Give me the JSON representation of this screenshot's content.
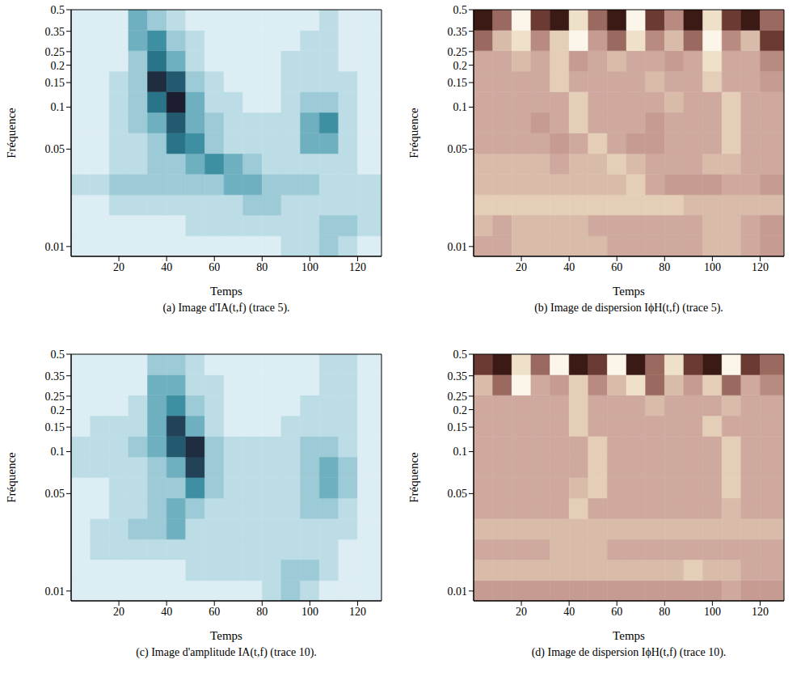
{
  "chart_data": [
    {
      "type": "heatmap",
      "caption": "(a) Image d'IA(t,f) (trace 5).",
      "xlabel": "Temps",
      "ylabel": "Fréquence",
      "log": "y",
      "color": "#1c1d2e",
      "xlim": [
        0,
        130
      ],
      "xticks": [
        20,
        40,
        60,
        80,
        100,
        120
      ],
      "ylim": [
        0.0085,
        0.5
      ],
      "yticks": [
        0.01,
        0.05,
        0.1,
        0.15,
        0.2,
        0.25,
        0.35,
        0.5
      ],
      "time_bins": [
        0,
        8,
        16,
        24,
        32,
        40,
        48,
        56,
        64,
        72,
        80,
        88,
        96,
        104,
        112,
        120,
        130
      ],
      "freq_bins": [
        0.0085,
        0.0119,
        0.0168,
        0.0235,
        0.0331,
        0.0464,
        0.0652,
        0.0916,
        0.129,
        0.181,
        0.254,
        0.356,
        0.5
      ],
      "zlim": [
        0,
        9
      ],
      "cells": [
        [
          0,
          0,
          0,
          0,
          0,
          0,
          0,
          0,
          0,
          0,
          0,
          1,
          1,
          2,
          1,
          0
        ],
        [
          0,
          0,
          0,
          0,
          0,
          0,
          1,
          1,
          1,
          1,
          1,
          1,
          1,
          2,
          2,
          1
        ],
        [
          0,
          0,
          1,
          1,
          1,
          1,
          1,
          1,
          1,
          2,
          2,
          1,
          1,
          1,
          1,
          1
        ],
        [
          1,
          1,
          2,
          2,
          2,
          2,
          2,
          2,
          3,
          3,
          2,
          2,
          2,
          1,
          1,
          1
        ],
        [
          0,
          0,
          1,
          1,
          2,
          2,
          3,
          4,
          3,
          2,
          1,
          1,
          1,
          1,
          1,
          0
        ],
        [
          0,
          0,
          1,
          1,
          2,
          5,
          4,
          2,
          1,
          1,
          1,
          1,
          3,
          3,
          1,
          0
        ],
        [
          0,
          0,
          1,
          2,
          3,
          6,
          3,
          2,
          1,
          1,
          1,
          1,
          3,
          4,
          1,
          0
        ],
        [
          0,
          0,
          1,
          2,
          5,
          9,
          3,
          1,
          1,
          0,
          0,
          1,
          2,
          2,
          1,
          0
        ],
        [
          0,
          0,
          1,
          2,
          8,
          6,
          2,
          1,
          0,
          0,
          0,
          1,
          1,
          1,
          1,
          0
        ],
        [
          0,
          0,
          0,
          2,
          5,
          3,
          1,
          0,
          0,
          0,
          0,
          1,
          1,
          1,
          0,
          0
        ],
        [
          0,
          0,
          0,
          3,
          4,
          2,
          1,
          0,
          0,
          0,
          0,
          0,
          1,
          1,
          0,
          0
        ],
        [
          0,
          0,
          0,
          3,
          2,
          1,
          0,
          0,
          0,
          0,
          0,
          0,
          0,
          1,
          0,
          0
        ]
      ]
    },
    {
      "type": "heatmap",
      "caption": "(b) Image de dispersion IϕH(t,f) (trace 5).",
      "xlabel": "Temps",
      "ylabel": "Fréquence",
      "log": "y",
      "color": "#3b1a16",
      "xlim": [
        0,
        130
      ],
      "xticks": [
        20,
        40,
        60,
        80,
        100,
        120
      ],
      "ylim": [
        0.0085,
        0.5
      ],
      "yticks": [
        0.01,
        0.05,
        0.1,
        0.15,
        0.2,
        0.25,
        0.35,
        0.5
      ],
      "time_bins": [
        0,
        8,
        16,
        24,
        32,
        40,
        48,
        56,
        64,
        72,
        80,
        88,
        96,
        104,
        112,
        120,
        130
      ],
      "freq_bins": [
        0.0085,
        0.0119,
        0.0168,
        0.0235,
        0.0331,
        0.0464,
        0.0652,
        0.0916,
        0.129,
        0.181,
        0.254,
        0.356,
        0.5
      ],
      "zlim": [
        0,
        9
      ],
      "cells": [
        [
          5,
          5,
          6,
          6,
          6,
          6,
          6,
          5,
          5,
          5,
          5,
          5,
          6,
          6,
          5,
          4
        ],
        [
          6,
          5,
          6,
          6,
          6,
          6,
          5,
          5,
          5,
          5,
          5,
          5,
          6,
          6,
          5,
          4
        ],
        [
          7,
          7,
          7,
          7,
          7,
          7,
          7,
          7,
          7,
          7,
          7,
          6,
          6,
          6,
          6,
          6
        ],
        [
          6,
          6,
          6,
          6,
          6,
          6,
          6,
          6,
          7,
          5,
          4,
          4,
          4,
          5,
          5,
          4
        ],
        [
          6,
          6,
          6,
          6,
          5,
          6,
          6,
          7,
          6,
          5,
          5,
          5,
          6,
          6,
          5,
          5
        ],
        [
          5,
          5,
          5,
          5,
          4,
          5,
          7,
          5,
          4,
          4,
          5,
          5,
          5,
          7,
          5,
          5
        ],
        [
          5,
          5,
          5,
          4,
          5,
          7,
          5,
          5,
          5,
          4,
          5,
          5,
          5,
          7,
          5,
          5
        ],
        [
          5,
          5,
          5,
          5,
          5,
          7,
          5,
          5,
          5,
          5,
          6,
          5,
          5,
          7,
          5,
          5
        ],
        [
          5,
          5,
          5,
          5,
          7,
          5,
          5,
          5,
          5,
          6,
          5,
          5,
          7,
          5,
          5,
          4
        ],
        [
          5,
          5,
          6,
          5,
          7,
          4,
          5,
          6,
          5,
          5,
          4,
          5,
          8,
          5,
          5,
          3
        ],
        [
          2,
          6,
          8,
          3,
          7,
          9,
          4,
          2,
          8,
          3,
          6,
          2,
          9,
          3,
          6,
          1
        ],
        [
          0,
          2,
          9,
          1,
          0,
          8,
          2,
          0,
          9,
          1,
          3,
          0,
          8,
          1,
          0,
          2
        ]
      ]
    },
    {
      "type": "heatmap",
      "caption": "(c) Image d'amplitude IA(t,f) (trace 10).",
      "xlabel": "Temps",
      "ylabel": "Fréquence",
      "log": "y",
      "color": "#1c1d2e",
      "xlim": [
        0,
        130
      ],
      "xticks": [
        20,
        40,
        60,
        80,
        100,
        120
      ],
      "ylim": [
        0.0085,
        0.5
      ],
      "yticks": [
        0.01,
        0.05,
        0.1,
        0.15,
        0.2,
        0.25,
        0.35,
        0.5
      ],
      "time_bins": [
        0,
        8,
        16,
        24,
        32,
        40,
        48,
        56,
        64,
        72,
        80,
        88,
        96,
        104,
        112,
        120,
        130
      ],
      "freq_bins": [
        0.0085,
        0.0119,
        0.0168,
        0.0235,
        0.0331,
        0.0464,
        0.0652,
        0.0916,
        0.129,
        0.181,
        0.254,
        0.356,
        0.5
      ],
      "zlim": [
        0,
        9
      ],
      "cells": [
        [
          0,
          0,
          0,
          0,
          0,
          0,
          0,
          0,
          0,
          0,
          1,
          2,
          1,
          0,
          0,
          0
        ],
        [
          0,
          0,
          0,
          0,
          0,
          0,
          1,
          1,
          1,
          1,
          1,
          2,
          2,
          1,
          0,
          0
        ],
        [
          0,
          1,
          1,
          1,
          1,
          1,
          1,
          1,
          1,
          1,
          1,
          1,
          1,
          1,
          0,
          0
        ],
        [
          0,
          1,
          1,
          2,
          2,
          3,
          1,
          1,
          1,
          1,
          1,
          1,
          1,
          1,
          1,
          0
        ],
        [
          0,
          0,
          1,
          1,
          2,
          3,
          2,
          1,
          1,
          1,
          1,
          1,
          2,
          2,
          1,
          0
        ],
        [
          0,
          0,
          1,
          1,
          2,
          2,
          4,
          2,
          1,
          1,
          1,
          1,
          2,
          3,
          2,
          0
        ],
        [
          1,
          1,
          1,
          1,
          2,
          3,
          7,
          2,
          1,
          1,
          1,
          1,
          2,
          3,
          2,
          0
        ],
        [
          1,
          1,
          1,
          2,
          3,
          6,
          8,
          2,
          1,
          1,
          1,
          1,
          2,
          2,
          1,
          0
        ],
        [
          0,
          1,
          1,
          1,
          3,
          7,
          3,
          1,
          0,
          0,
          0,
          1,
          1,
          1,
          1,
          0
        ],
        [
          0,
          0,
          0,
          1,
          3,
          4,
          2,
          1,
          0,
          0,
          0,
          0,
          1,
          1,
          1,
          0
        ],
        [
          0,
          0,
          0,
          0,
          3,
          3,
          1,
          1,
          0,
          0,
          0,
          0,
          0,
          1,
          1,
          0
        ],
        [
          0,
          0,
          0,
          0,
          2,
          2,
          1,
          0,
          0,
          0,
          0,
          0,
          0,
          1,
          1,
          0
        ]
      ]
    },
    {
      "type": "heatmap",
      "caption": "(d) Image de dispersion IϕH(t,f) (trace 10).",
      "xlabel": "Temps",
      "ylabel": "Fréquence",
      "log": "y",
      "color": "#3b1a16",
      "xlim": [
        0,
        130
      ],
      "xticks": [
        20,
        40,
        60,
        80,
        100,
        120
      ],
      "ylim": [
        0.0085,
        0.5
      ],
      "yticks": [
        0.01,
        0.05,
        0.1,
        0.15,
        0.2,
        0.25,
        0.35,
        0.5
      ],
      "time_bins": [
        0,
        8,
        16,
        24,
        32,
        40,
        48,
        56,
        64,
        72,
        80,
        88,
        96,
        104,
        112,
        120,
        130
      ],
      "freq_bins": [
        0.0085,
        0.0119,
        0.0168,
        0.0235,
        0.0331,
        0.0464,
        0.0652,
        0.0916,
        0.129,
        0.181,
        0.254,
        0.356,
        0.5
      ],
      "zlim": [
        0,
        9
      ],
      "cells": [
        [
          4,
          4,
          4,
          4,
          4,
          4,
          4,
          4,
          4,
          4,
          4,
          4,
          4,
          5,
          4,
          4
        ],
        [
          6,
          6,
          6,
          6,
          6,
          6,
          6,
          6,
          6,
          6,
          6,
          7,
          6,
          6,
          5,
          5
        ],
        [
          5,
          5,
          5,
          5,
          6,
          6,
          6,
          5,
          5,
          5,
          5,
          5,
          5,
          5,
          5,
          5
        ],
        [
          6,
          6,
          6,
          6,
          6,
          6,
          6,
          6,
          6,
          6,
          6,
          6,
          6,
          6,
          6,
          6
        ],
        [
          5,
          5,
          5,
          5,
          5,
          7,
          5,
          5,
          5,
          5,
          5,
          5,
          5,
          6,
          5,
          5
        ],
        [
          5,
          5,
          5,
          5,
          5,
          6,
          7,
          5,
          5,
          5,
          5,
          5,
          5,
          7,
          5,
          5
        ],
        [
          5,
          5,
          5,
          5,
          5,
          5,
          7,
          5,
          5,
          5,
          5,
          5,
          5,
          7,
          5,
          5
        ],
        [
          5,
          5,
          5,
          5,
          5,
          5,
          7,
          5,
          5,
          5,
          5,
          5,
          5,
          7,
          5,
          5
        ],
        [
          5,
          5,
          5,
          5,
          5,
          7,
          5,
          5,
          5,
          5,
          5,
          5,
          7,
          5,
          5,
          5
        ],
        [
          5,
          5,
          5,
          5,
          5,
          7,
          5,
          5,
          5,
          6,
          5,
          5,
          5,
          6,
          5,
          5
        ],
        [
          6,
          2,
          9,
          5,
          4,
          7,
          3,
          6,
          8,
          2,
          6,
          4,
          7,
          2,
          5,
          3
        ],
        [
          1,
          0,
          8,
          2,
          9,
          0,
          1,
          9,
          0,
          2,
          8,
          1,
          0,
          9,
          1,
          2
        ]
      ]
    }
  ]
}
